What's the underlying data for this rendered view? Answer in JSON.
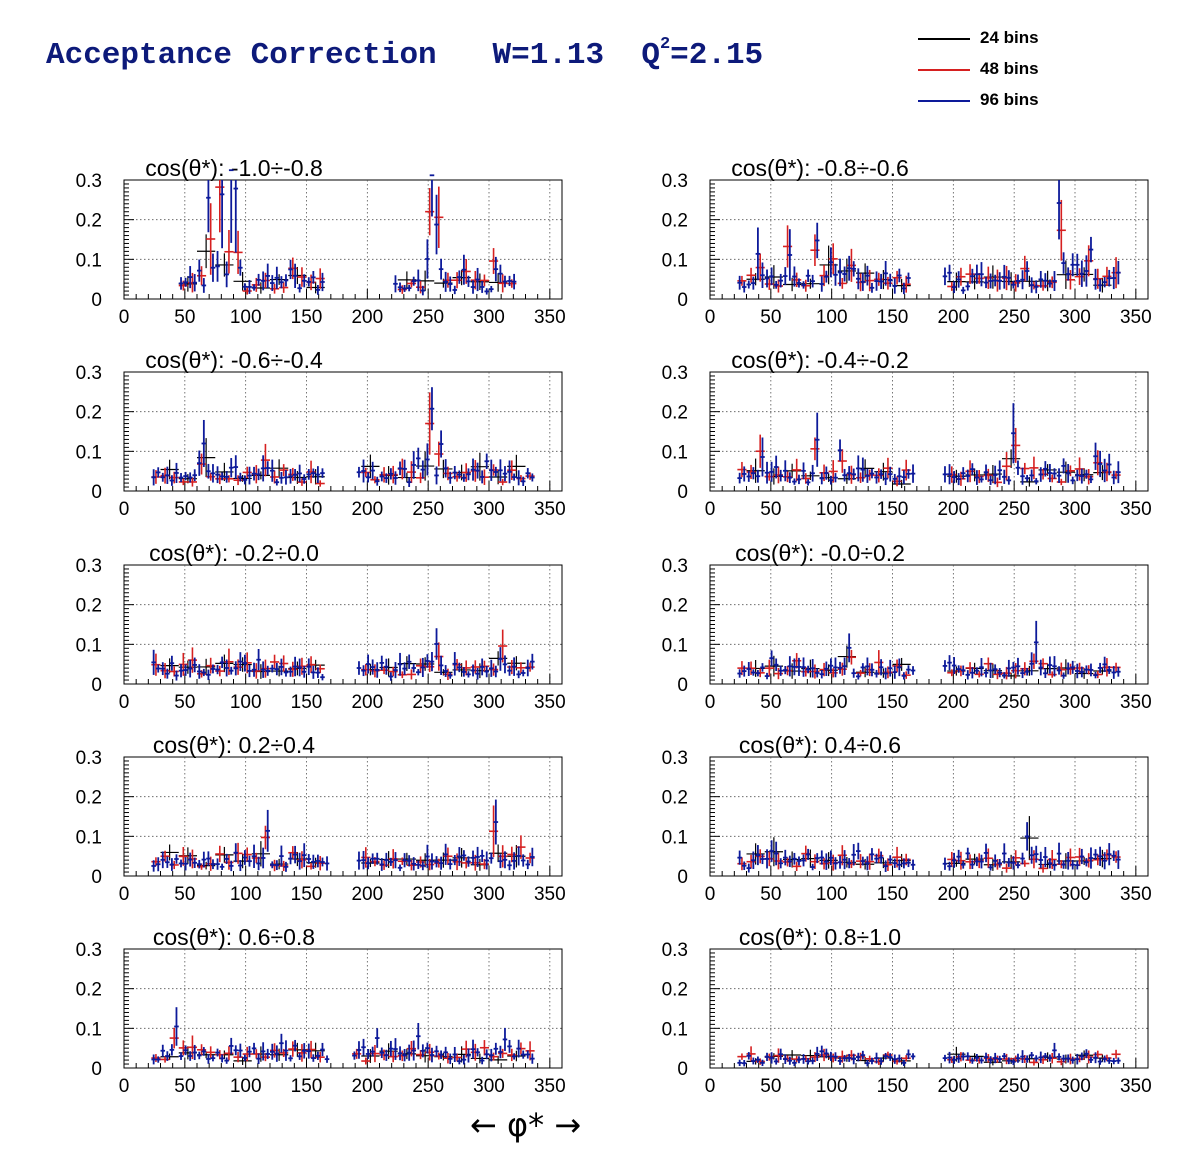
{
  "title": {
    "main": "Acceptance Correction",
    "kin": "W=1.13",
    "q2_prefix": "Q",
    "q2_sup": "2",
    "q2_value": "=2.15"
  },
  "legend": [
    {
      "label": "24 bins",
      "color": "#000000"
    },
    {
      "label": "48 bins",
      "color": "#d62020"
    },
    {
      "label": "96 bins",
      "color": "#0d1a9a"
    }
  ],
  "x_axis_caption": "←   φ*   →",
  "chart_data": [
    {
      "type": "histogram",
      "title": "cos(θ*): -1.0÷-0.8",
      "xlim": [
        0,
        360
      ],
      "ylim": [
        0,
        0.3
      ],
      "xticks": [
        0,
        50,
        100,
        150,
        200,
        250,
        300,
        350
      ],
      "yticks": [
        0,
        0.1,
        0.2,
        0.3
      ],
      "grid": true,
      "ranges": [
        [
          45,
          165
        ],
        [
          220,
          325
        ]
      ],
      "level": 0.04,
      "peaks": [
        [
          62,
          0.06
        ],
        [
          70,
          0.26
        ],
        [
          80,
          0.29
        ],
        [
          88,
          0.29
        ],
        [
          92,
          0.21
        ],
        [
          138,
          0.07
        ],
        [
          252,
          0.3
        ],
        [
          258,
          0.18
        ],
        [
          280,
          0.09
        ],
        [
          305,
          0.1
        ]
      ]
    },
    {
      "type": "histogram",
      "title": "cos(θ*): -0.8÷-0.6",
      "xlim": [
        0,
        360
      ],
      "ylim": [
        0,
        0.3
      ],
      "xticks": [
        0,
        50,
        100,
        150,
        200,
        250,
        300,
        350
      ],
      "yticks": [
        0,
        0.1,
        0.2,
        0.3
      ],
      "grid": true,
      "ranges": [
        [
          20,
          165
        ],
        [
          190,
          340
        ]
      ],
      "level": 0.045,
      "peaks": [
        [
          40,
          0.1
        ],
        [
          65,
          0.12
        ],
        [
          88,
          0.14
        ],
        [
          100,
          0.12
        ],
        [
          115,
          0.09
        ],
        [
          260,
          0.07
        ],
        [
          288,
          0.24
        ],
        [
          300,
          0.11
        ],
        [
          312,
          0.12
        ]
      ]
    },
    {
      "type": "histogram",
      "title": "cos(θ*): -0.6÷-0.4",
      "xlim": [
        0,
        360
      ],
      "ylim": [
        0,
        0.3
      ],
      "xticks": [
        0,
        50,
        100,
        150,
        200,
        250,
        300,
        350
      ],
      "yticks": [
        0,
        0.1,
        0.2,
        0.3
      ],
      "grid": true,
      "ranges": [
        [
          22,
          165
        ],
        [
          190,
          340
        ]
      ],
      "level": 0.04,
      "peaks": [
        [
          65,
          0.11
        ],
        [
          90,
          0.09
        ],
        [
          115,
          0.08
        ],
        [
          240,
          0.09
        ],
        [
          252,
          0.2
        ],
        [
          260,
          0.1
        ],
        [
          300,
          0.07
        ]
      ]
    },
    {
      "type": "histogram",
      "title": "cos(θ*): -0.4÷-0.2",
      "xlim": [
        0,
        360
      ],
      "ylim": [
        0,
        0.3
      ],
      "xticks": [
        0,
        50,
        100,
        150,
        200,
        250,
        300,
        350
      ],
      "yticks": [
        0,
        0.1,
        0.2,
        0.3
      ],
      "grid": true,
      "ranges": [
        [
          22,
          170
        ],
        [
          190,
          340
        ]
      ],
      "level": 0.04,
      "peaks": [
        [
          42,
          0.08
        ],
        [
          88,
          0.13
        ],
        [
          108,
          0.1
        ],
        [
          250,
          0.12
        ],
        [
          318,
          0.09
        ],
        [
          328,
          0.06
        ]
      ]
    },
    {
      "type": "histogram",
      "title": "cos(θ*): -0.2÷0.0",
      "xlim": [
        0,
        360
      ],
      "ylim": [
        0,
        0.3
      ],
      "xticks": [
        0,
        50,
        100,
        150,
        200,
        250,
        300,
        350
      ],
      "yticks": [
        0,
        0.1,
        0.2,
        0.3
      ],
      "grid": true,
      "ranges": [
        [
          20,
          165
        ],
        [
          190,
          340
        ]
      ],
      "level": 0.04,
      "peaks": [
        [
          60,
          0.07
        ],
        [
          100,
          0.08
        ],
        [
          256,
          0.12
        ],
        [
          310,
          0.09
        ]
      ]
    },
    {
      "type": "histogram",
      "title": "cos(θ*): -0.0÷0.2",
      "xlim": [
        0,
        360
      ],
      "ylim": [
        0,
        0.3
      ],
      "xticks": [
        0,
        50,
        100,
        150,
        200,
        250,
        300,
        350
      ],
      "yticks": [
        0,
        0.1,
        0.2,
        0.3
      ],
      "grid": true,
      "ranges": [
        [
          22,
          170
        ],
        [
          190,
          340
        ]
      ],
      "level": 0.037,
      "peaks": [
        [
          52,
          0.07
        ],
        [
          115,
          0.08
        ],
        [
          268,
          0.08
        ],
        [
          300,
          0.07
        ]
      ]
    },
    {
      "type": "histogram",
      "title": "cos(θ*): 0.2÷0.4",
      "xlim": [
        0,
        360
      ],
      "ylim": [
        0,
        0.3
      ],
      "xticks": [
        0,
        50,
        100,
        150,
        200,
        250,
        300,
        350
      ],
      "yticks": [
        0,
        0.1,
        0.2,
        0.3
      ],
      "grid": true,
      "ranges": [
        [
          20,
          170
        ],
        [
          190,
          340
        ]
      ],
      "level": 0.038,
      "peaks": [
        [
          118,
          0.1
        ],
        [
          138,
          0.07
        ],
        [
          305,
          0.12
        ],
        [
          325,
          0.07
        ]
      ]
    },
    {
      "type": "histogram",
      "title": "cos(θ*): 0.4÷0.6",
      "xlim": [
        0,
        360
      ],
      "ylim": [
        0,
        0.3
      ],
      "xticks": [
        0,
        50,
        100,
        150,
        200,
        250,
        300,
        350
      ],
      "yticks": [
        0,
        0.1,
        0.2,
        0.3
      ],
      "grid": true,
      "ranges": [
        [
          22,
          170
        ],
        [
          190,
          340
        ]
      ],
      "level": 0.038,
      "peaks": [
        [
          52,
          0.07
        ],
        [
          122,
          0.07
        ],
        [
          262,
          0.09
        ],
        [
          322,
          0.06
        ]
      ]
    },
    {
      "type": "histogram",
      "title": "cos(θ*): 0.6÷0.8",
      "xlim": [
        0,
        360
      ],
      "ylim": [
        0,
        0.3
      ],
      "xticks": [
        0,
        50,
        100,
        150,
        200,
        250,
        300,
        350
      ],
      "yticks": [
        0,
        0.1,
        0.2,
        0.3
      ],
      "grid": true,
      "ranges": [
        [
          22,
          170
        ],
        [
          185,
          340
        ]
      ],
      "level": 0.037,
      "peaks": [
        [
          43,
          0.08
        ],
        [
          130,
          0.06
        ],
        [
          208,
          0.07
        ],
        [
          242,
          0.08
        ],
        [
          312,
          0.06
        ]
      ]
    },
    {
      "type": "histogram",
      "title": "cos(θ*): 0.8÷1.0",
      "xlim": [
        0,
        360
      ],
      "ylim": [
        0,
        0.3
      ],
      "xticks": [
        0,
        50,
        100,
        150,
        200,
        250,
        300,
        350
      ],
      "yticks": [
        0,
        0.1,
        0.2,
        0.3
      ],
      "grid": true,
      "ranges": [
        [
          22,
          170
        ],
        [
          190,
          340
        ]
      ],
      "level": 0.025,
      "peaks": [
        [
          90,
          0.045
        ],
        [
          255,
          0.035
        ],
        [
          285,
          0.04
        ]
      ]
    }
  ]
}
